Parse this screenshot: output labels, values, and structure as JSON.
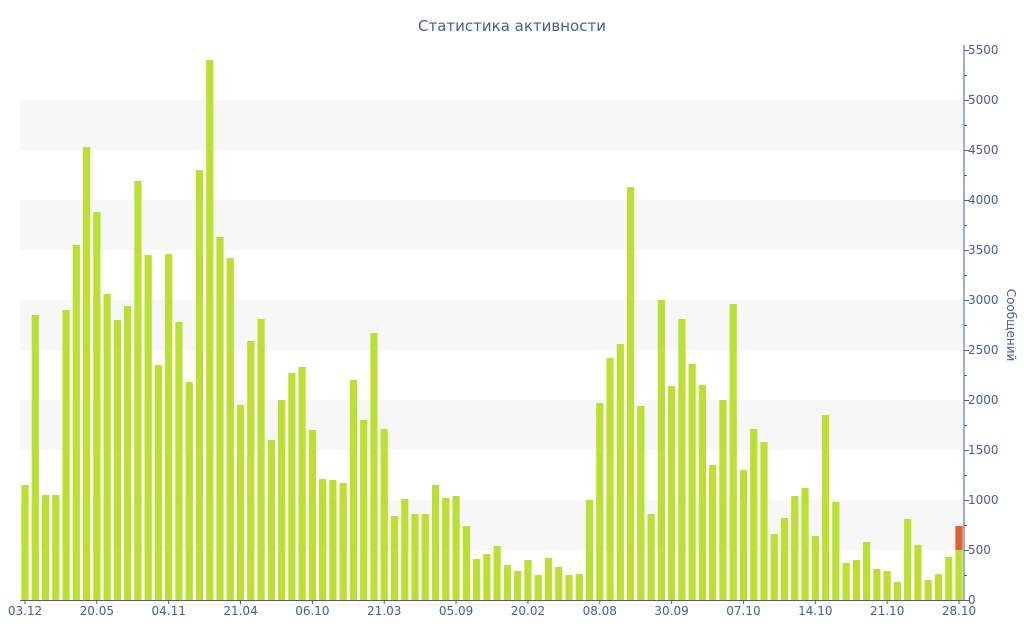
{
  "chart_data": {
    "type": "bar",
    "title": "Статистика активности",
    "xlabel": "",
    "ylabel": "Сообщений",
    "ylim": [
      0,
      5500
    ],
    "yticks": [
      0,
      500,
      1000,
      1500,
      2000,
      2500,
      3000,
      3500,
      4000,
      4500,
      5000,
      5500
    ],
    "xtick_labels": [
      "03.12",
      "20.05",
      "04.11",
      "21.04",
      "06.10",
      "21.03",
      "05.09",
      "20.02",
      "08.08",
      "30.09",
      "07.10",
      "14.10",
      "21.10",
      "28.10"
    ],
    "xtick_every": 7,
    "grid": "alternating horizontal bands",
    "y_axis_position": "right",
    "colors": {
      "main": "#bce032",
      "highlight": "#e0622d",
      "band": "#f7f7f7",
      "axis": "#4a5a9c"
    },
    "series": [
      {
        "name": "main",
        "values": [
          1150,
          2850,
          1050,
          1050,
          2900,
          3550,
          4530,
          3880,
          3060,
          2800,
          2940,
          4190,
          3450,
          2350,
          3460,
          2780,
          2180,
          4300,
          5400,
          3630,
          3420,
          1950,
          2590,
          2810,
          1600,
          2000,
          2270,
          2330,
          1700,
          1210,
          1200,
          1170,
          2200,
          1800,
          2670,
          1710,
          840,
          1010,
          860,
          860,
          1150,
          1020,
          1040,
          740,
          410,
          460,
          540,
          350,
          290,
          400,
          250,
          420,
          330,
          250,
          260,
          1000,
          1970,
          2420,
          2560,
          4130,
          1940,
          860,
          3000,
          2140,
          2810,
          2360,
          2150,
          1350,
          2000,
          2960,
          1300,
          1710,
          1580,
          660,
          820,
          1040,
          1120,
          640,
          1850,
          980,
          370,
          400,
          580,
          310,
          290,
          180,
          810,
          550,
          200,
          260,
          430,
          500
        ]
      },
      {
        "name": "highlight",
        "values": [
          0,
          0,
          0,
          0,
          0,
          0,
          0,
          0,
          0,
          0,
          0,
          0,
          0,
          0,
          0,
          0,
          0,
          0,
          0,
          0,
          0,
          0,
          0,
          0,
          0,
          0,
          0,
          0,
          0,
          0,
          0,
          0,
          0,
          0,
          0,
          0,
          0,
          0,
          0,
          0,
          0,
          0,
          0,
          0,
          0,
          0,
          0,
          0,
          0,
          0,
          0,
          0,
          0,
          0,
          0,
          0,
          0,
          0,
          0,
          0,
          0,
          0,
          0,
          0,
          0,
          0,
          0,
          0,
          0,
          0,
          0,
          0,
          0,
          0,
          0,
          0,
          0,
          0,
          0,
          0,
          0,
          0,
          0,
          0,
          0,
          0,
          0,
          0,
          0,
          0,
          0,
          240
        ]
      }
    ]
  }
}
